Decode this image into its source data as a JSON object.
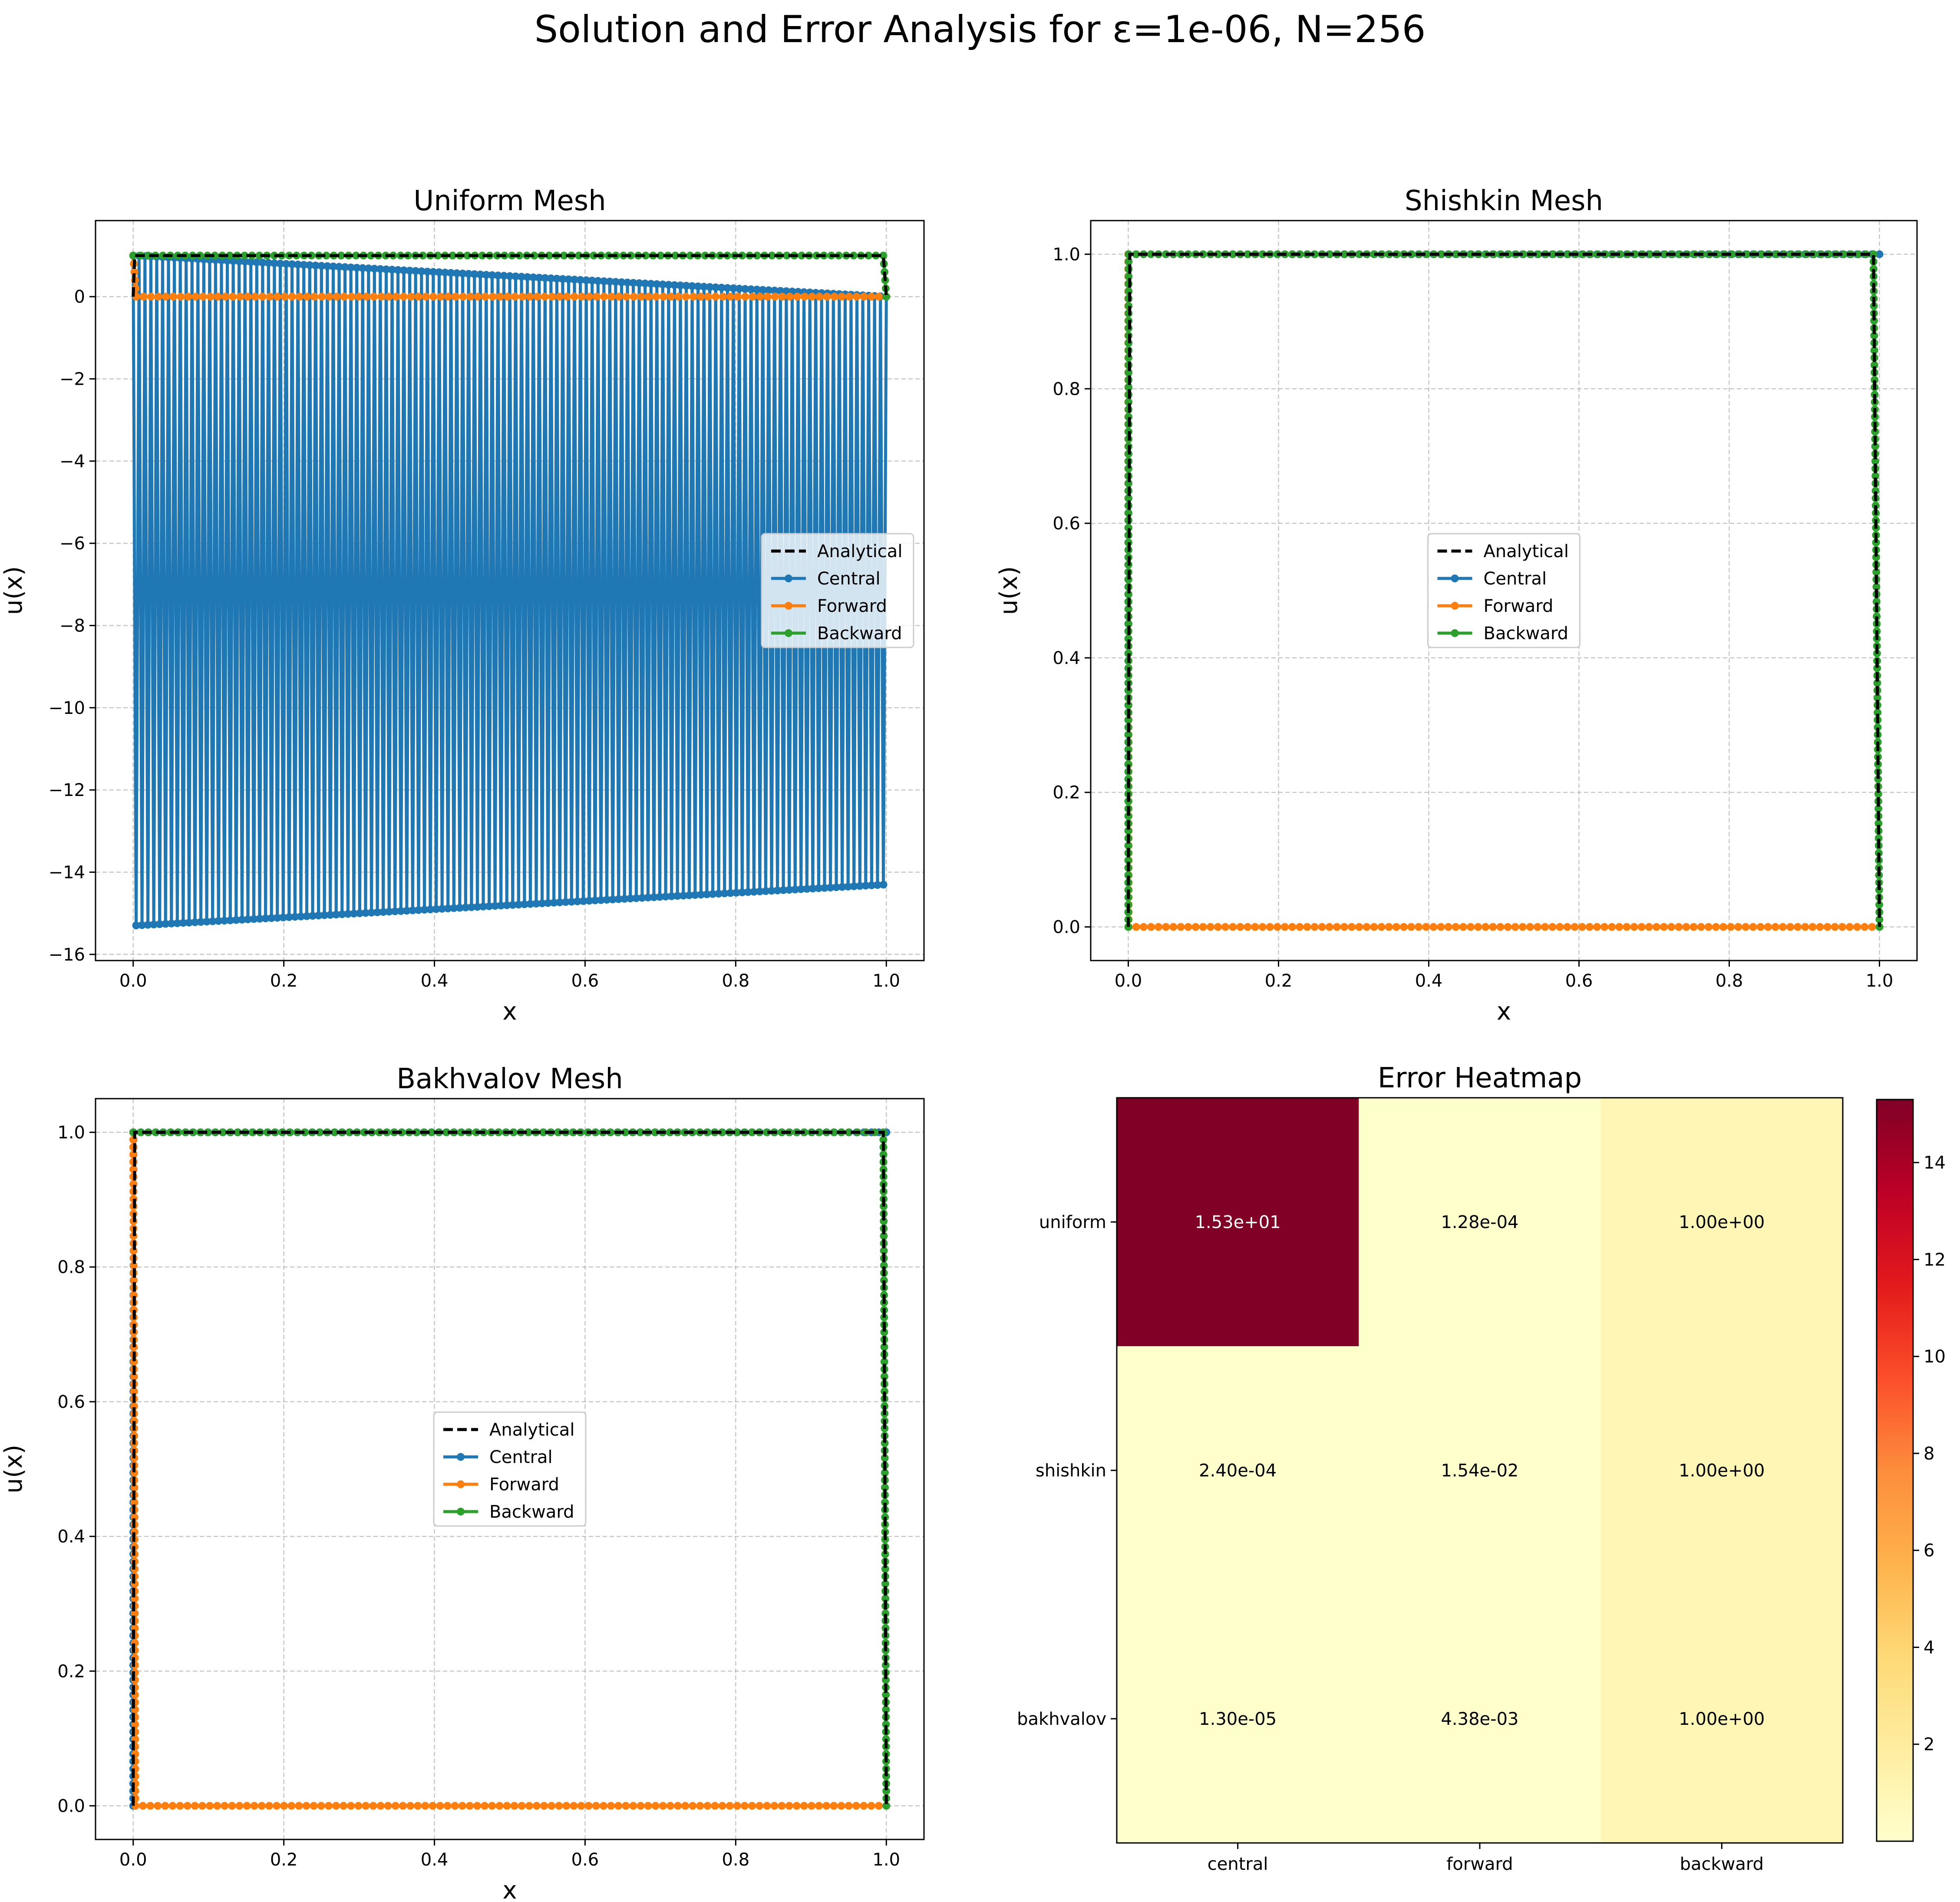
{
  "figure": {
    "title": "Solution and Error Analysis for ε=1e-06, N=256"
  },
  "colors": {
    "analytical": "#000000",
    "central": "#1f77b4",
    "forward": "#ff7f0e",
    "backward": "#2ca02c",
    "grid": "#b0b0b0",
    "colormap": "YlOrRd"
  },
  "chart_data": [
    {
      "type": "line",
      "title": "Uniform Mesh",
      "xlabel": "x",
      "ylabel": "u(x)",
      "xlim": [
        -0.05,
        1.05
      ],
      "ylim": [
        -16.15,
        1.85
      ],
      "xticks": [
        "0.0",
        "0.2",
        "0.4",
        "0.6",
        "0.8",
        "1.0"
      ],
      "yticks": [
        "−16",
        "−14",
        "−12",
        "−10",
        "−8",
        "−6",
        "−4",
        "−2",
        "0"
      ],
      "grid": true,
      "legend_position": "center-right",
      "legend": [
        "Analytical",
        "Central",
        "Forward",
        "Backward"
      ],
      "series": [
        {
          "name": "Analytical",
          "style": "dashed",
          "x": [
            0,
            0.002,
            0.996,
            1.0
          ],
          "y": [
            0,
            1,
            1,
            0
          ]
        },
        {
          "name": "Central",
          "style": "line-marker",
          "pattern": "oscillating",
          "n_points": 257,
          "x_range": [
            0,
            1
          ],
          "upper_start": 1.0,
          "upper_end": 0.0,
          "lower_start": -15.3,
          "lower_end": -14.3
        },
        {
          "name": "Forward",
          "style": "line-marker",
          "x": [
            0,
            0.004,
            1.0
          ],
          "y": [
            1.0,
            0.0,
            0.0
          ]
        },
        {
          "name": "Backward",
          "style": "line-marker",
          "x": [
            0,
            0.996,
            1.0
          ],
          "y": [
            1.0,
            1.0,
            0.0
          ]
        }
      ]
    },
    {
      "type": "line",
      "title": "Shishkin Mesh",
      "xlabel": "x",
      "ylabel": "u(x)",
      "xlim": [
        -0.05,
        1.05
      ],
      "ylim": [
        -0.05,
        1.05
      ],
      "xticks": [
        "0.0",
        "0.2",
        "0.4",
        "0.6",
        "0.8",
        "1.0"
      ],
      "yticks": [
        "0.0",
        "0.2",
        "0.4",
        "0.6",
        "0.8",
        "1.0"
      ],
      "grid": true,
      "legend_position": "center",
      "legend": [
        "Analytical",
        "Central",
        "Forward",
        "Backward"
      ],
      "series": [
        {
          "name": "Analytical",
          "style": "dashed",
          "x": [
            0,
            0.002,
            0.992,
            1.0
          ],
          "y": [
            0,
            1,
            1,
            0
          ]
        },
        {
          "name": "Central",
          "style": "line-marker",
          "x": [
            0,
            0,
            0.0005,
            1.0
          ],
          "y": [
            0,
            1,
            1,
            1
          ]
        },
        {
          "name": "Forward",
          "style": "line-marker",
          "x": [
            0,
            0.0006,
            1.0
          ],
          "y": [
            1.0,
            0.0,
            0.0
          ]
        },
        {
          "name": "Backward",
          "style": "line-marker",
          "x": [
            0,
            0.0005,
            0.992,
            1.0
          ],
          "y": [
            0,
            1.0,
            1.0,
            0.0
          ]
        }
      ]
    },
    {
      "type": "line",
      "title": "Bakhvalov Mesh",
      "xlabel": "x",
      "ylabel": "u(x)",
      "xlim": [
        -0.05,
        1.05
      ],
      "ylim": [
        -0.05,
        1.05
      ],
      "xticks": [
        "0.0",
        "0.2",
        "0.4",
        "0.6",
        "0.8",
        "1.0"
      ],
      "yticks": [
        "0.0",
        "0.2",
        "0.4",
        "0.6",
        "0.8",
        "1.0"
      ],
      "grid": true,
      "legend_position": "center",
      "legend": [
        "Analytical",
        "Central",
        "Forward",
        "Backward"
      ],
      "series": [
        {
          "name": "Analytical",
          "style": "dashed",
          "x": [
            0,
            0.002,
            0.996,
            1.0
          ],
          "y": [
            0,
            1,
            1,
            0
          ]
        },
        {
          "name": "Central",
          "style": "line-marker",
          "x": [
            0,
            0.0005,
            1.0
          ],
          "y": [
            0,
            1,
            1
          ]
        },
        {
          "name": "Forward",
          "style": "line-marker",
          "x": [
            0,
            0.003,
            0.95,
            1.0
          ],
          "y": [
            1.0,
            0.0,
            0.0,
            0.0
          ]
        },
        {
          "name": "Backward",
          "style": "line-marker",
          "x": [
            0,
            0.95,
            0.996,
            1.0
          ],
          "y": [
            1.0,
            1.0,
            1.0,
            0.0
          ]
        }
      ]
    },
    {
      "type": "heatmap",
      "title": "Error Heatmap",
      "rows": [
        "uniform",
        "shishkin",
        "bakhvalov"
      ],
      "columns": [
        "central",
        "forward",
        "backward"
      ],
      "values": [
        [
          15.3,
          0.000128,
          1.0
        ],
        [
          0.00024,
          0.0154,
          1.0
        ],
        [
          1.3e-05,
          0.00438,
          1.0
        ]
      ],
      "labels": [
        [
          "1.53e+01",
          "1.28e-04",
          "1.00e+00"
        ],
        [
          "2.40e-04",
          "1.54e-02",
          "1.00e+00"
        ],
        [
          "1.30e-05",
          "4.38e-03",
          "1.00e+00"
        ]
      ],
      "colorbar": {
        "min": 1.3e-05,
        "max": 15.3,
        "ticks": [
          2,
          4,
          6,
          8,
          10,
          12,
          14
        ],
        "tick_labels": [
          "2",
          "4",
          "6",
          "8",
          "10",
          "12",
          "14"
        ]
      }
    }
  ]
}
